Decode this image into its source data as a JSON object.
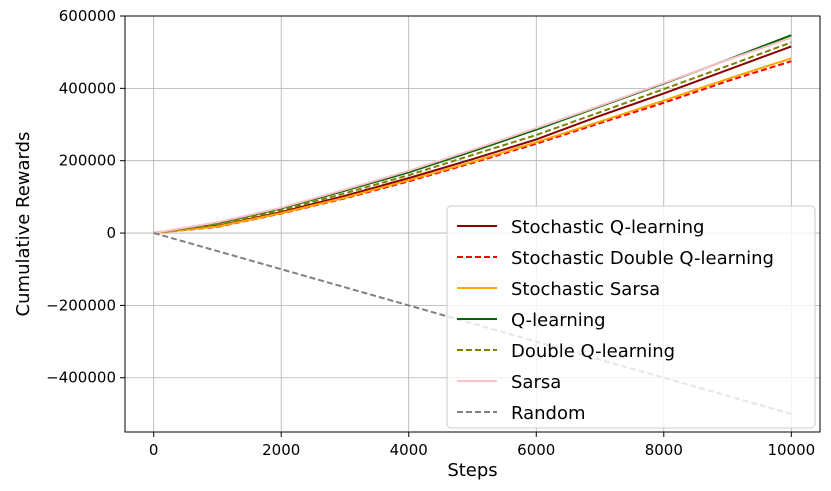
{
  "chart_data": {
    "type": "line",
    "xlabel": "Steps",
    "ylabel": "Cumulative Rewards",
    "xlim": [
      -450,
      10450
    ],
    "ylim": [
      -550000,
      600000
    ],
    "xticks": [
      0,
      2000,
      4000,
      6000,
      8000,
      10000
    ],
    "xtick_labels": [
      "0",
      "2000",
      "4000",
      "6000",
      "8000",
      "10000"
    ],
    "yticks": [
      -400000,
      -200000,
      0,
      200000,
      400000,
      600000
    ],
    "ytick_labels": [
      "−400000",
      "−200000",
      "0",
      "200000",
      "400000",
      "600000"
    ],
    "grid": true,
    "legend_position": "lower-right",
    "x": [
      0,
      1000,
      2000,
      3000,
      4000,
      5000,
      6000,
      7000,
      8000,
      9000,
      10000
    ],
    "series": [
      {
        "name": "Stochastic Q-learning",
        "color": "#8b0000",
        "dash": "solid",
        "values": [
          0,
          20000,
          58000,
          103000,
          152000,
          204000,
          259000,
          324000,
          386000,
          451000,
          516000
        ]
      },
      {
        "name": "Stochastic Double Q-learning",
        "color": "#ff0000",
        "dash": "dashed",
        "values": [
          0,
          17000,
          54000,
          96000,
          143000,
          194000,
          247000,
          304000,
          360000,
          420000,
          475000
        ]
      },
      {
        "name": "Stochastic Sarsa",
        "color": "#ffa500",
        "dash": "solid",
        "values": [
          0,
          18000,
          55000,
          98000,
          146000,
          197000,
          251000,
          308000,
          366000,
          426000,
          483000
        ]
      },
      {
        "name": "Q-learning",
        "color": "#006400",
        "dash": "solid",
        "values": [
          0,
          27000,
          68000,
          117000,
          168000,
          226000,
          286000,
          350000,
          413000,
          479000,
          547000
        ]
      },
      {
        "name": "Double Q-learning",
        "color": "#808000",
        "dash": "dashed",
        "values": [
          0,
          24000,
          63000,
          110000,
          160000,
          216000,
          271000,
          334000,
          398000,
          462000,
          527000
        ]
      },
      {
        "name": "Sarsa",
        "color": "#ffc0cb",
        "dash": "solid",
        "values": [
          0,
          30000,
          70000,
          120000,
          172000,
          230000,
          290000,
          352000,
          415000,
          478000,
          540000
        ]
      },
      {
        "name": "Random",
        "color": "#808080",
        "dash": "dashed",
        "values": [
          0,
          -50000,
          -100000,
          -150000,
          -200000,
          -250000,
          -300000,
          -350000,
          -400000,
          -450000,
          -500000
        ]
      }
    ]
  }
}
